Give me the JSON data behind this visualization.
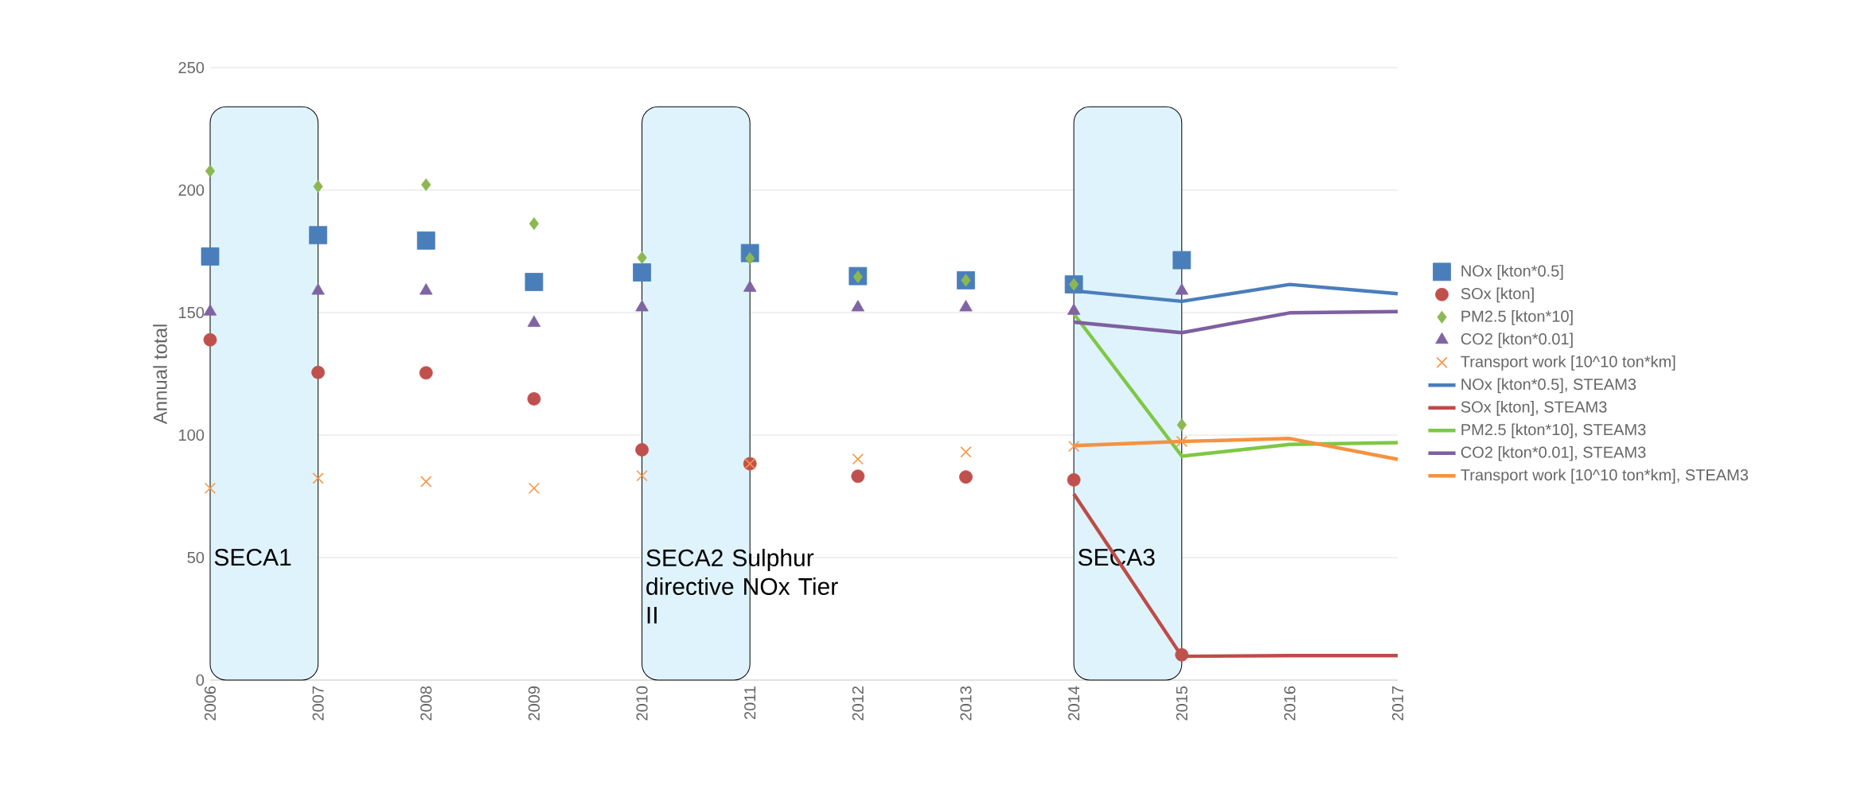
{
  "chart_data": {
    "type": "line",
    "ylabel": "Annual total",
    "x": [
      2006,
      2007,
      2008,
      2009,
      2010,
      2011,
      2012,
      2013,
      2014,
      2015
    ],
    "series": [
      {
        "name": "NOx [kton*0.5]",
        "type": "scatter",
        "marker": "square",
        "color": "#4a7ebb",
        "values": [
          172.9,
          181.6,
          179.4,
          162.5,
          166.4,
          174.3,
          164.9,
          163.2,
          161.5,
          171.4
        ]
      },
      {
        "name": "SOx [kton]",
        "type": "scatter",
        "marker": "circle",
        "color": "#c0504d",
        "values": [
          138.9,
          125.6,
          125.4,
          114.8,
          94,
          88.3,
          83.2,
          82.9,
          81.7,
          10.3
        ]
      },
      {
        "name": "PM2.5 [kton*10]",
        "type": "scatter",
        "marker": "diamond",
        "color": "#8cb852",
        "values": [
          207.8,
          201.5,
          202.2,
          186.3,
          172.4,
          172.1,
          164.6,
          163.2,
          161.5,
          104.2
        ]
      },
      {
        "name": "CO2 [kton*0.01]",
        "type": "scatter",
        "marker": "triangle",
        "color": "#8064a2",
        "values": [
          150.4,
          158.9,
          158.9,
          145.8,
          152.1,
          160.1,
          152.1,
          152.1,
          150.7,
          158.9
        ]
      },
      {
        "name": "Transport work [10^10 ton*km]",
        "type": "scatter",
        "marker": "cross",
        "color": "#f79646",
        "values": [
          78.3,
          82.4,
          81,
          78.3,
          83.4,
          88.3,
          90.2,
          93.1,
          95.4,
          97.4
        ]
      },
      {
        "name": "NOx [kton*0.5], STEAM3",
        "marker": "none",
        "color": "#4a7ebb",
        "x": [
          2014,
          2015,
          2016,
          2017
        ],
        "values": [
          158.9,
          154.6,
          161.5,
          157.7
        ]
      },
      {
        "name": "SOx [kton], STEAM3",
        "marker": "none",
        "color": "#be4b48",
        "x": [
          2014,
          2015,
          2016,
          2017
        ],
        "values": [
          76,
          9.7,
          10,
          10
        ]
      },
      {
        "name": "PM2.5 [kton*10], STEAM3",
        "marker": "none",
        "color": "#7ec843",
        "x": [
          2014,
          2015,
          2016,
          2017
        ],
        "values": [
          149.5,
          91.4,
          96.2,
          96.9
        ]
      },
      {
        "name": "CO2 [kton*0.01], STEAM3",
        "marker": "none",
        "color": "#7e5fa0",
        "x": [
          2014,
          2015,
          2016,
          2017
        ],
        "values": [
          146.1,
          141.8,
          149.9,
          150.4
        ]
      },
      {
        "name": "Transport work [10^10 ton*km], STEAM3",
        "marker": "none",
        "color": "#f59240",
        "x": [
          2014,
          2015,
          2016,
          2017
        ],
        "values": [
          95.7,
          97.4,
          98.6,
          90.1
        ]
      }
    ],
    "xlim": [
      2006,
      2017
    ],
    "xticks": [
      2006,
      2007,
      2008,
      2009,
      2010,
      2011,
      2012,
      2013,
      2014,
      2015,
      2016,
      2017
    ],
    "ylim": [
      0,
      250
    ],
    "yticks": [
      0,
      50,
      100,
      150,
      200,
      250
    ],
    "bands": [
      {
        "axis": "x",
        "from": 2006,
        "to": 2007,
        "label": "SECA1",
        "color": "#dff3fc"
      },
      {
        "axis": "x",
        "from": 2010,
        "to": 2011,
        "label": "SECA2 Sulphur directive NOx Tier II",
        "color": "#dff3fc"
      },
      {
        "axis": "x",
        "from": 2014,
        "to": 2015,
        "label": "SECA3",
        "color": "#dff3fc"
      }
    ],
    "grid": "y",
    "legend": "right"
  }
}
